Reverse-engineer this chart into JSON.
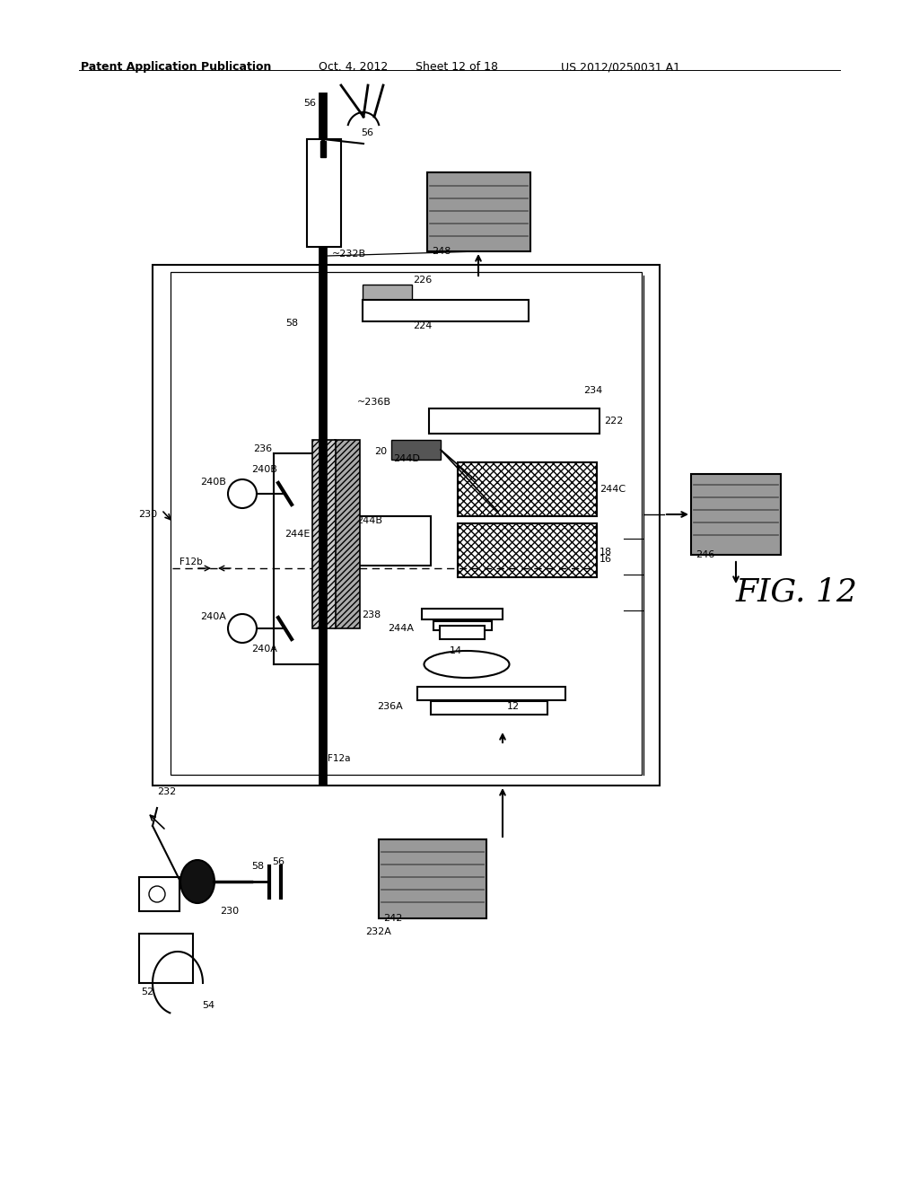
{
  "bg_color": "#ffffff",
  "header_text": "Patent Application Publication",
  "header_date": "Oct. 4, 2012",
  "header_sheet": "Sheet 12 of 18",
  "header_patent": "US 2012/0250031 A1",
  "fig_label": "FIG. 12",
  "title_fontsize": 10,
  "fig_label_fontsize": 26
}
